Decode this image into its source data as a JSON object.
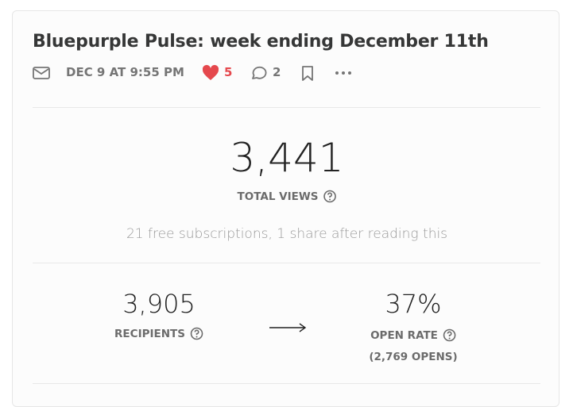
{
  "header": {
    "title": "Bluepurple Pulse: week ending December 11th",
    "date": "DEC 9 AT 9:55 PM",
    "likes": "5",
    "comments": "2"
  },
  "views": {
    "total": "3,441",
    "label": "TOTAL VIEWS",
    "note": "21 free subscriptions, 1 share after reading this"
  },
  "email": {
    "recipients": "3,905",
    "recipients_label": "RECIPIENTS",
    "open_rate": "37%",
    "open_rate_label": "OPEN RATE",
    "opens": "(2,769 OPENS)"
  }
}
